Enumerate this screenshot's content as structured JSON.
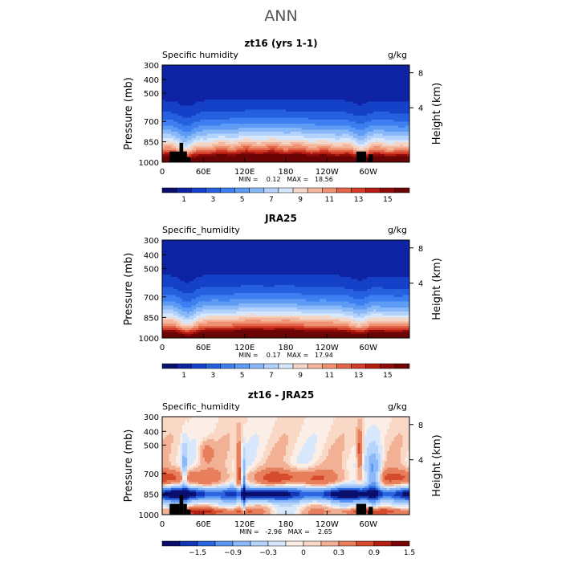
{
  "header": {
    "title": "ANN"
  },
  "chart_data": [
    {
      "type": "heatmap",
      "title": "zt16 (yrs 1-1)",
      "variable_label": "Specific humidity",
      "units": "g/kg",
      "ylabel": "Pressure (mb)",
      "y2label": "Height (km)",
      "xticks": [
        "0",
        "60E",
        "120E",
        "180",
        "120W",
        "60W"
      ],
      "yticks": [
        "300",
        "400",
        "500",
        "700",
        "850",
        "1000"
      ],
      "y2ticks": [
        "8",
        "4"
      ],
      "stats": "MIN =    0.12   MAX =   18.56",
      "colorbar_labels": [
        "1",
        "3",
        "5",
        "7",
        "9",
        "11",
        "13",
        "15"
      ],
      "colorbar_levels": [
        0,
        1,
        2,
        3,
        4,
        5,
        6,
        7,
        8,
        9,
        10,
        11,
        12,
        13,
        14,
        15,
        16
      ],
      "min": 0.12,
      "max": 18.56
    },
    {
      "type": "heatmap",
      "title": "JRA25",
      "variable_label": "Specific_humidity",
      "units": "g/kg",
      "ylabel": "Pressure (mb)",
      "y2label": "Height (km)",
      "xticks": [
        "0",
        "60E",
        "120E",
        "180",
        "120W",
        "60W"
      ],
      "yticks": [
        "300",
        "400",
        "500",
        "700",
        "850",
        "1000"
      ],
      "y2ticks": [
        "8",
        "4"
      ],
      "stats": "MIN =    0.17   MAX =   17.94",
      "colorbar_labels": [
        "1",
        "3",
        "5",
        "7",
        "9",
        "11",
        "13",
        "15"
      ],
      "colorbar_levels": [
        0,
        1,
        2,
        3,
        4,
        5,
        6,
        7,
        8,
        9,
        10,
        11,
        12,
        13,
        14,
        15,
        16
      ],
      "min": 0.17,
      "max": 17.94
    },
    {
      "type": "heatmap",
      "title": "zt16 - JRA25",
      "variable_label": "Specific_humidity",
      "units": "g/kg",
      "ylabel": "Pressure (mb)",
      "y2label": "Height (km)",
      "xticks": [
        "0",
        "60E",
        "120E",
        "180",
        "120W",
        "60W"
      ],
      "yticks": [
        "300",
        "400",
        "500",
        "700",
        "850",
        "1000"
      ],
      "y2ticks": [
        "8",
        "4"
      ],
      "stats": "MIN =   -2.96   MAX =    2.65",
      "colorbar_labels": [
        "-1.5",
        "-0.9",
        "-0.3",
        "0",
        "0.3",
        "0.9",
        "1.5"
      ],
      "colorbar_levels": [
        -1.8,
        -1.5,
        -1.2,
        -0.9,
        -0.6,
        -0.3,
        -0.1,
        0,
        0.1,
        0.3,
        0.6,
        0.9,
        1.2,
        1.5,
        1.8
      ],
      "min": -2.96,
      "max": 2.65
    }
  ],
  "colors": {
    "sequential": [
      "#0a0f6e",
      "#0d23a3",
      "#1540c8",
      "#2560de",
      "#3d7ff0",
      "#5e9bf5",
      "#88b8f8",
      "#b3d2fb",
      "#d8e8fc",
      "#f4d6c6",
      "#f4b69c",
      "#ee9272",
      "#e3664a",
      "#d23c28",
      "#b41c12",
      "#8f0b08",
      "#6b0404"
    ],
    "diverging": [
      "#0a0f6e",
      "#1337b5",
      "#2b66e0",
      "#5b95f2",
      "#8ab8f8",
      "#b5d3fb",
      "#d8e8fc",
      "#fbeee6",
      "#f9d8c6",
      "#f2b195",
      "#e87f5c",
      "#d54b2c",
      "#b31f12",
      "#7a0505"
    ],
    "topography": "#000000"
  }
}
